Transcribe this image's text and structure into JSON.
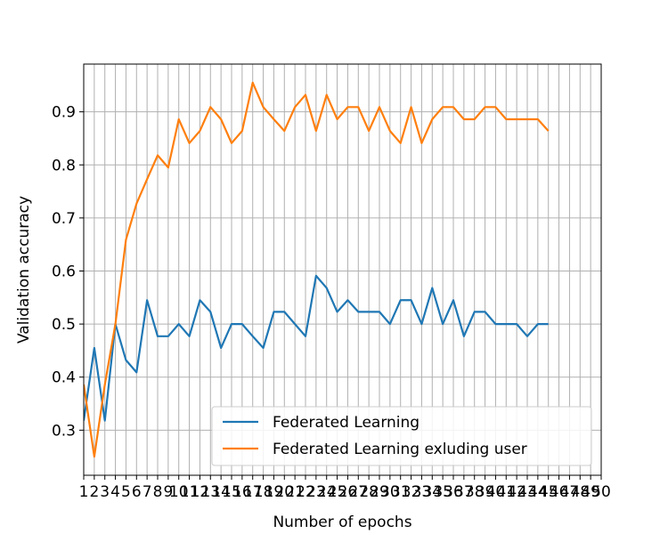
{
  "chart_data": {
    "type": "line",
    "xlabel": "Number of epochs",
    "ylabel": "Validation accuracy",
    "x_ticks": [
      1,
      2,
      3,
      4,
      5,
      6,
      7,
      8,
      9,
      10,
      11,
      12,
      13,
      14,
      15,
      16,
      17,
      18,
      19,
      20,
      21,
      22,
      23,
      24,
      25,
      26,
      27,
      28,
      29,
      30,
      31,
      32,
      33,
      34,
      35,
      36,
      37,
      38,
      39,
      40,
      41,
      42,
      43,
      44,
      45,
      46,
      47,
      48,
      49,
      50
    ],
    "xlim": [
      1,
      50
    ],
    "ylim": [
      0.215,
      0.99
    ],
    "y_ticks": [
      0.3,
      0.4,
      0.5,
      0.6,
      0.7,
      0.8,
      0.9
    ],
    "y_tick_labels": [
      "0.3",
      "0.4",
      "0.5",
      "0.6",
      "0.7",
      "0.8",
      "0.9"
    ],
    "grid": true,
    "legend_position": "lower-right",
    "series": [
      {
        "name": "Federated Learning",
        "color": "#1f77b4",
        "x": [
          1,
          2,
          3,
          4,
          5,
          6,
          7,
          8,
          9,
          10,
          11,
          12,
          13,
          14,
          15,
          16,
          17,
          18,
          19,
          20,
          21,
          22,
          23,
          24,
          25,
          26,
          27,
          28,
          29,
          30,
          31,
          32,
          33,
          34,
          35,
          36,
          37,
          38,
          39,
          40,
          41,
          42,
          43,
          44,
          45
        ],
        "values": [
          0.318,
          0.455,
          0.318,
          0.5,
          0.432,
          0.409,
          0.545,
          0.477,
          0.477,
          0.5,
          0.477,
          0.545,
          0.523,
          0.455,
          0.5,
          0.5,
          0.477,
          0.455,
          0.523,
          0.523,
          0.5,
          0.477,
          0.591,
          0.568,
          0.523,
          0.545,
          0.523,
          0.523,
          0.523,
          0.5,
          0.545,
          0.545,
          0.5,
          0.568,
          0.5,
          0.545,
          0.477,
          0.523,
          0.523,
          0.5,
          0.5,
          0.5,
          0.477,
          0.5,
          0.5
        ]
      },
      {
        "name": "Federated Learning exluding user",
        "color": "#ff7f0e",
        "x": [
          1,
          2,
          3,
          4,
          5,
          6,
          7,
          8,
          9,
          10,
          11,
          12,
          13,
          14,
          15,
          16,
          17,
          18,
          19,
          20,
          21,
          22,
          23,
          24,
          25,
          26,
          27,
          28,
          29,
          30,
          31,
          32,
          33,
          34,
          35,
          36,
          37,
          38,
          39,
          40,
          41,
          42,
          43,
          44,
          45
        ],
        "values": [
          0.386,
          0.25,
          0.386,
          0.5,
          0.659,
          0.727,
          0.773,
          0.818,
          0.795,
          0.886,
          0.841,
          0.864,
          0.909,
          0.886,
          0.841,
          0.864,
          0.955,
          0.909,
          0.886,
          0.864,
          0.909,
          0.932,
          0.864,
          0.932,
          0.886,
          0.909,
          0.909,
          0.864,
          0.909,
          0.864,
          0.841,
          0.909,
          0.841,
          0.886,
          0.909,
          0.909,
          0.886,
          0.886,
          0.909,
          0.909,
          0.886,
          0.886,
          0.886,
          0.886,
          0.864
        ]
      }
    ]
  }
}
